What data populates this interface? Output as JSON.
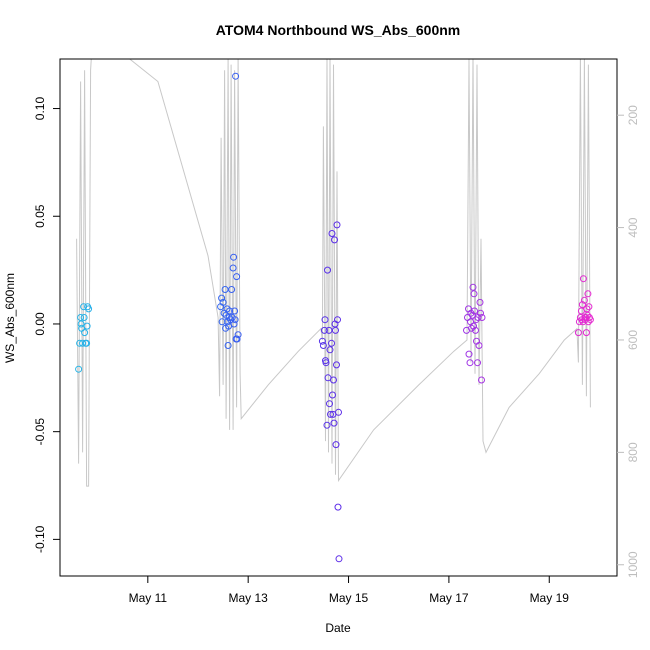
{
  "chart_data": {
    "type": "scatter",
    "title": "ATOM4 Northbound WS_Abs_600nm",
    "xlabel": "Date",
    "ylabel": "WS_Abs_600nm",
    "x_ticks": [
      "May 11",
      "May 13",
      "May 15",
      "May 17",
      "May 19"
    ],
    "x_tick_days": [
      11,
      13,
      15,
      17,
      19
    ],
    "xlim_days": [
      9.25,
      20.35
    ],
    "y_ticks": [
      -0.1,
      -0.05,
      0.0,
      0.05,
      0.1
    ],
    "y_tick_labels": [
      "-0.10",
      "-0.05",
      "0.00",
      "0.05",
      "0.10"
    ],
    "ylim": [
      -0.117,
      0.123
    ],
    "y2_ticks": [
      200,
      400,
      600,
      800,
      1000
    ],
    "y2_tick_labels": [
      "200",
      "400",
      "600",
      "800",
      "1000"
    ],
    "y2lim": [
      100,
      1020
    ],
    "y2_reversed": true,
    "grid": false,
    "legend": "none",
    "point_color_gradient": [
      "#29b6e8",
      "#2f6ef2",
      "#5b2ee8",
      "#9b35e6",
      "#e62ad1"
    ],
    "secondary_line_color": "#c8c8c8",
    "series": [
      {
        "values": [
          [
            9.62,
            -0.021
          ],
          [
            9.64,
            -0.009
          ],
          [
            9.66,
            0.003
          ],
          [
            9.67,
            0.0
          ],
          [
            9.68,
            -0.002
          ],
          [
            9.7,
            -0.009
          ],
          [
            9.72,
            0.008
          ],
          [
            9.73,
            0.003
          ],
          [
            9.74,
            -0.004
          ],
          [
            9.76,
            -0.009
          ],
          [
            9.78,
            -0.009
          ],
          [
            9.79,
            -0.001
          ],
          [
            9.8,
            0.008
          ],
          [
            9.82,
            0.007
          ],
          [
            12.45,
            0.008
          ],
          [
            12.47,
            0.012
          ],
          [
            12.48,
            0.001
          ],
          [
            12.5,
            0.01
          ],
          [
            12.52,
            0.005
          ],
          [
            12.54,
            0.016
          ],
          [
            12.55,
            -0.002
          ],
          [
            12.56,
            0.004
          ],
          [
            12.58,
            0.007
          ],
          [
            12.59,
            0.001
          ],
          [
            12.6,
            -0.01
          ],
          [
            12.61,
            -0.001
          ],
          [
            12.62,
            0.003
          ],
          [
            12.63,
            0.006
          ],
          [
            12.65,
            0.002
          ],
          [
            12.67,
            0.016
          ],
          [
            12.68,
            0.003
          ],
          [
            12.7,
            0.026
          ],
          [
            12.71,
            0.031
          ],
          [
            12.72,
            0.0
          ],
          [
            12.73,
            0.006
          ],
          [
            12.74,
            0.002
          ],
          [
            12.75,
            0.115
          ],
          [
            12.76,
            -0.007
          ],
          [
            12.77,
            0.022
          ],
          [
            12.78,
            -0.007
          ],
          [
            12.8,
            -0.005
          ],
          [
            14.48,
            -0.008
          ],
          [
            14.5,
            -0.01
          ],
          [
            14.52,
            -0.003
          ],
          [
            14.53,
            0.002
          ],
          [
            14.54,
            -0.017
          ],
          [
            14.55,
            -0.018
          ],
          [
            14.57,
            -0.047
          ],
          [
            14.58,
            0.025
          ],
          [
            14.59,
            -0.025
          ],
          [
            14.61,
            -0.003
          ],
          [
            14.62,
            -0.037
          ],
          [
            14.63,
            -0.012
          ],
          [
            14.64,
            -0.042
          ],
          [
            14.66,
            -0.009
          ],
          [
            14.67,
            0.042
          ],
          [
            14.68,
            -0.033
          ],
          [
            14.69,
            -0.042
          ],
          [
            14.7,
            -0.026
          ],
          [
            14.71,
            -0.046
          ],
          [
            14.72,
            0.039
          ],
          [
            14.73,
            0.0
          ],
          [
            14.74,
            -0.003
          ],
          [
            14.75,
            -0.056
          ],
          [
            14.76,
            -0.019
          ],
          [
            14.77,
            0.046
          ],
          [
            14.78,
            0.002
          ],
          [
            14.79,
            -0.085
          ],
          [
            14.8,
            -0.041
          ],
          [
            14.81,
            -0.109
          ],
          [
            17.35,
            -0.003
          ],
          [
            17.37,
            0.003
          ],
          [
            17.39,
            0.007
          ],
          [
            17.4,
            -0.014
          ],
          [
            17.42,
            -0.018
          ],
          [
            17.43,
            0.001
          ],
          [
            17.44,
            0.005
          ],
          [
            17.45,
            -0.002
          ],
          [
            17.47,
            0.004
          ],
          [
            17.48,
            0.017
          ],
          [
            17.49,
            -0.001
          ],
          [
            17.5,
            0.014
          ],
          [
            17.51,
            0.006
          ],
          [
            17.53,
            -0.003
          ],
          [
            17.54,
            0.002
          ],
          [
            17.55,
            -0.008
          ],
          [
            17.57,
            -0.018
          ],
          [
            17.58,
            0.003
          ],
          [
            17.6,
            -0.01
          ],
          [
            17.62,
            0.01
          ],
          [
            17.63,
            0.005
          ],
          [
            17.65,
            -0.026
          ],
          [
            17.66,
            0.003
          ],
          [
            19.58,
            -0.004
          ],
          [
            19.6,
            0.001
          ],
          [
            19.62,
            0.003
          ],
          [
            19.64,
            0.006
          ],
          [
            19.65,
            0.002
          ],
          [
            19.66,
            0.009
          ],
          [
            19.67,
            0.001
          ],
          [
            19.68,
            0.021
          ],
          [
            19.7,
            0.011
          ],
          [
            19.71,
            0.003
          ],
          [
            19.72,
            0.002
          ],
          [
            19.73,
            0.003
          ],
          [
            19.74,
            -0.004
          ],
          [
            19.75,
            0.007
          ],
          [
            19.76,
            0.004
          ],
          [
            19.77,
            0.014
          ],
          [
            19.78,
            0.001
          ],
          [
            19.79,
            0.008
          ],
          [
            19.8,
            0.003
          ],
          [
            19.82,
            0.002
          ]
        ]
      },
      {
        "axis": "secondary",
        "values": [
          [
            9.58,
            420
          ],
          [
            9.62,
            820
          ],
          [
            9.66,
            140
          ],
          [
            9.7,
            800
          ],
          [
            9.74,
            120
          ],
          [
            9.78,
            860
          ],
          [
            9.82,
            860
          ],
          [
            9.86,
            120
          ],
          [
            9.88,
            90
          ],
          [
            10.5,
            90
          ],
          [
            11.2,
            140
          ],
          [
            12.2,
            450
          ],
          [
            12.4,
            560
          ],
          [
            12.43,
            700
          ],
          [
            12.46,
            240
          ],
          [
            12.5,
            680
          ],
          [
            12.53,
            120
          ],
          [
            12.56,
            740
          ],
          [
            12.6,
            100
          ],
          [
            12.63,
            760
          ],
          [
            12.66,
            110
          ],
          [
            12.7,
            760
          ],
          [
            12.73,
            120
          ],
          [
            12.77,
            720
          ],
          [
            12.8,
            100
          ],
          [
            12.84,
            660
          ],
          [
            12.86,
            740
          ],
          [
            13.4,
            680
          ],
          [
            14.0,
            620
          ],
          [
            14.45,
            580
          ],
          [
            14.48,
            600
          ],
          [
            14.5,
            220
          ],
          [
            14.54,
            780
          ],
          [
            14.57,
            90
          ],
          [
            14.6,
            800
          ],
          [
            14.63,
            100
          ],
          [
            14.67,
            820
          ],
          [
            14.7,
            110
          ],
          [
            14.74,
            840
          ],
          [
            14.77,
            300
          ],
          [
            14.8,
            850
          ],
          [
            15.5,
            760
          ],
          [
            16.4,
            680
          ],
          [
            17.1,
            620
          ],
          [
            17.36,
            600
          ],
          [
            17.4,
            100
          ],
          [
            17.44,
            640
          ],
          [
            17.48,
            90
          ],
          [
            17.52,
            660
          ],
          [
            17.56,
            110
          ],
          [
            17.6,
            680
          ],
          [
            17.64,
            420
          ],
          [
            17.68,
            780
          ],
          [
            17.74,
            800
          ],
          [
            18.2,
            720
          ],
          [
            18.8,
            660
          ],
          [
            19.3,
            600
          ],
          [
            19.55,
            580
          ],
          [
            19.58,
            640
          ],
          [
            19.62,
            90
          ],
          [
            19.66,
            680
          ],
          [
            19.7,
            100
          ],
          [
            19.74,
            700
          ],
          [
            19.78,
            110
          ],
          [
            19.82,
            720
          ]
        ]
      }
    ]
  }
}
